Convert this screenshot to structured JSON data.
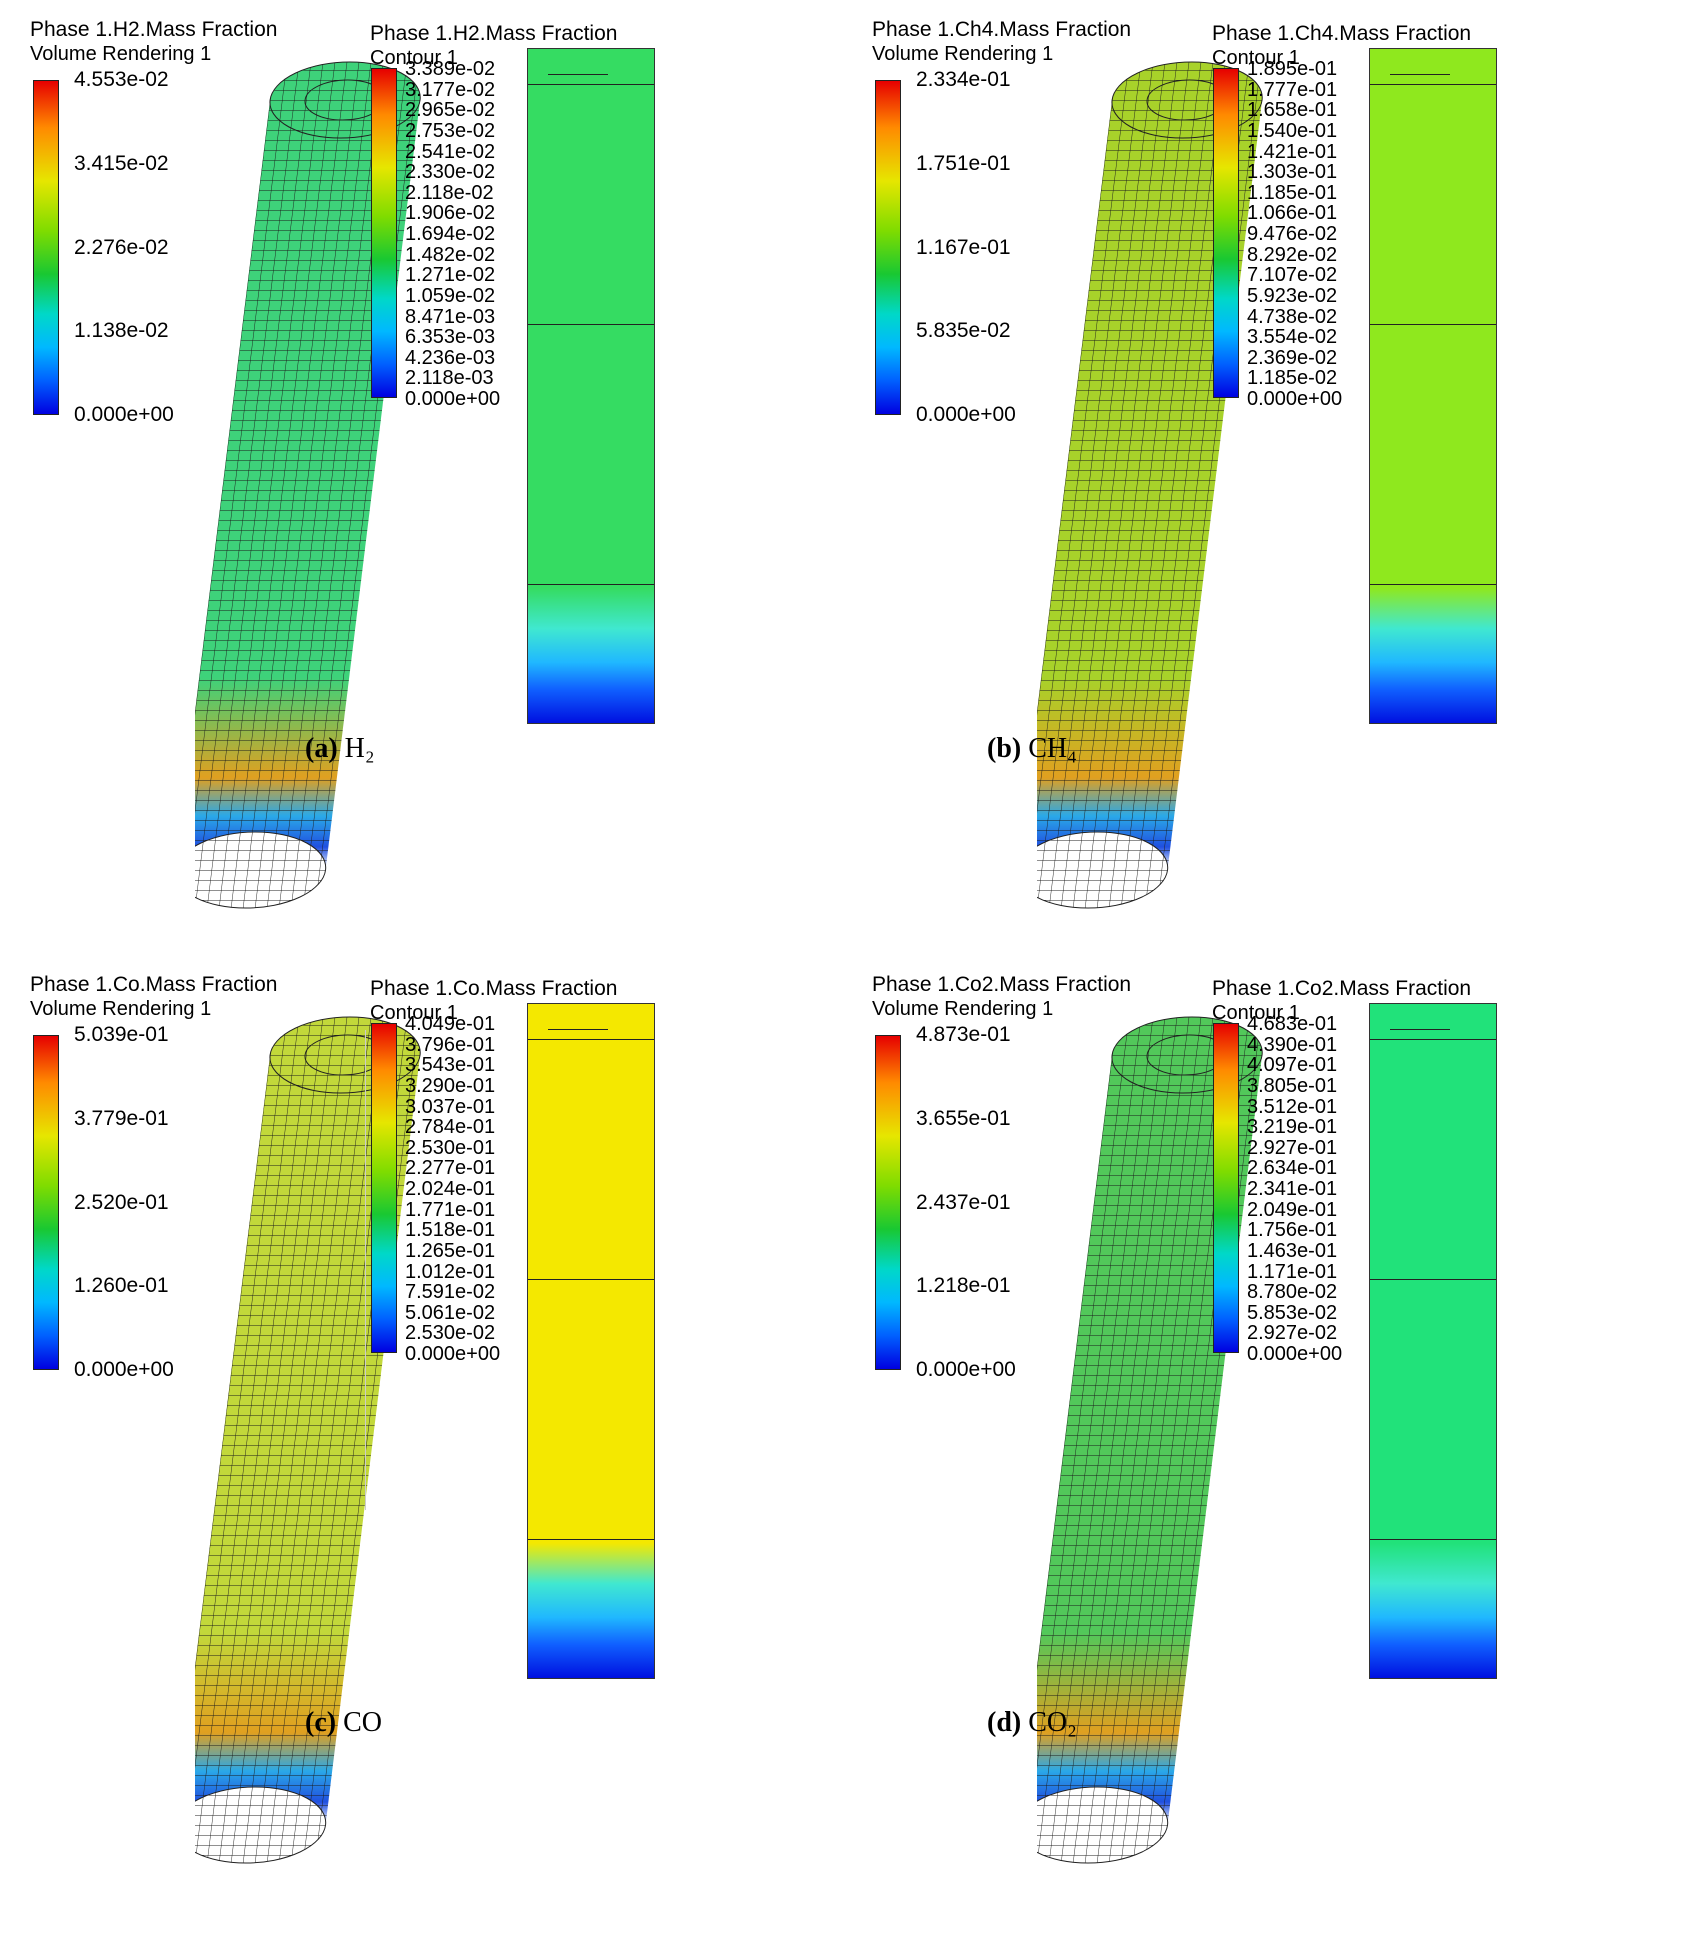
{
  "panels": [
    {
      "id": "a",
      "vr_title": "Phase 1.H2.Mass Fraction",
      "vr_sub": "Volume Rendering 1",
      "vr_ticks": [
        "4.553e-02",
        "3.415e-02",
        "2.276e-02",
        "1.138e-02",
        "0.000e+00"
      ],
      "ct_title": "Phase 1.H2.Mass Fraction",
      "ct_sub": "Contour 1",
      "ct_ticks": [
        "3.389e-02",
        "3.177e-02",
        "2.965e-02",
        "2.753e-02",
        "2.541e-02",
        "2.330e-02",
        "2.118e-02",
        "1.906e-02",
        "1.694e-02",
        "1.482e-02",
        "1.271e-02",
        "1.059e-02",
        "8.471e-03",
        "6.353e-03",
        "4.236e-03",
        "2.118e-03",
        "0.000e+00"
      ],
      "caption_letter": "(a)",
      "caption_text": "H₂",
      "cyl_color": "#3ed27a",
      "ct_color": "#35dc62"
    },
    {
      "id": "b",
      "vr_title": "Phase 1.Ch4.Mass Fraction",
      "vr_sub": "Volume Rendering 1",
      "vr_ticks": [
        "2.334e-01",
        "1.751e-01",
        "1.167e-01",
        "5.835e-02",
        "0.000e+00"
      ],
      "ct_title": "Phase 1.Ch4.Mass Fraction",
      "ct_sub": "Contour 1",
      "ct_ticks": [
        "1.895e-01",
        "1.777e-01",
        "1.658e-01",
        "1.540e-01",
        "1.421e-01",
        "1.303e-01",
        "1.185e-01",
        "1.066e-01",
        "9.476e-02",
        "8.292e-02",
        "7.107e-02",
        "5.923e-02",
        "4.738e-02",
        "3.554e-02",
        "2.369e-02",
        "1.185e-02",
        "0.000e+00"
      ],
      "caption_letter": "(b)",
      "caption_text": "CH₄",
      "cyl_color": "#a8d22a",
      "ct_color": "#8fe81e"
    },
    {
      "id": "c",
      "vr_title": "Phase 1.Co.Mass Fraction",
      "vr_sub": "Volume Rendering 1",
      "vr_ticks": [
        "5.039e-01",
        "3.779e-01",
        "2.520e-01",
        "1.260e-01",
        "0.000e+00"
      ],
      "ct_title": "Phase 1.Co.Mass Fraction",
      "ct_sub": "Contour 1",
      "ct_ticks": [
        "4.049e-01",
        "3.796e-01",
        "3.543e-01",
        "3.290e-01",
        "3.037e-01",
        "2.784e-01",
        "2.530e-01",
        "2.277e-01",
        "2.024e-01",
        "1.771e-01",
        "1.518e-01",
        "1.265e-01",
        "1.012e-01",
        "7.591e-02",
        "5.061e-02",
        "2.530e-02",
        "0.000e+00"
      ],
      "caption_letter": "(c)",
      "caption_text": "CO",
      "cyl_color": "#c2d83a",
      "ct_color": "#f4e800"
    },
    {
      "id": "d",
      "vr_title": "Phase 1.Co2.Mass Fraction",
      "vr_sub": "Volume Rendering 1",
      "vr_ticks": [
        "4.873e-01",
        "3.655e-01",
        "2.437e-01",
        "1.218e-01",
        "0.000e+00"
      ],
      "ct_title": "Phase 1.Co2.Mass Fraction",
      "ct_sub": "Contour 1",
      "ct_ticks": [
        "4.683e-01",
        "4.390e-01",
        "4.097e-01",
        "3.805e-01",
        "3.512e-01",
        "3.219e-01",
        "2.927e-01",
        "2.634e-01",
        "2.341e-01",
        "2.049e-01",
        "1.756e-01",
        "1.463e-01",
        "1.171e-01",
        "8.780e-02",
        "5.853e-02",
        "2.927e-02",
        "0.000e+00"
      ],
      "caption_letter": "(d)",
      "caption_text": "CO₂",
      "cyl_color": "#52c85a",
      "ct_color": "#21e27a"
    }
  ]
}
